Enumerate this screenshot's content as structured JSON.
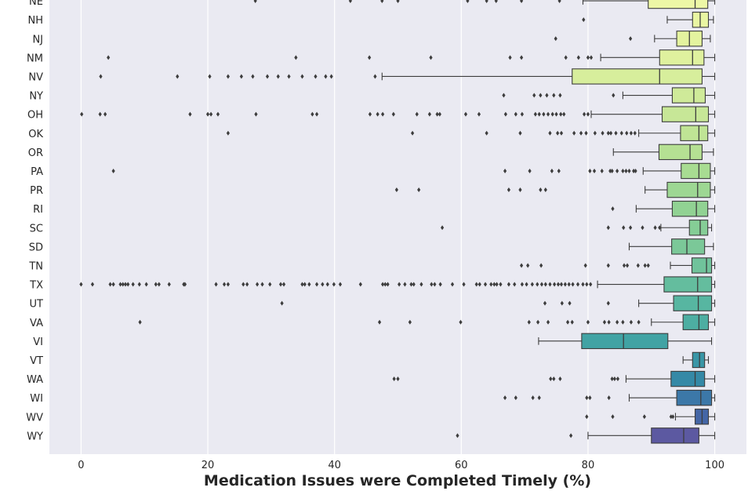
{
  "chart_data": {
    "type": "box",
    "orientation": "horizontal",
    "xlabel": "Medication Issues were Completed Timely (%)",
    "xlim": [
      -5,
      105
    ],
    "xticks": [
      0,
      20,
      40,
      60,
      80,
      100
    ],
    "grid": true,
    "palette": "yellow-green-blue (top to bottom)",
    "categories": [
      {
        "label": "NE",
        "color": "#edf7a6",
        "whisker_low": 79.2,
        "q1": 89.5,
        "median": 96.9,
        "q3": 98.9,
        "whisker_high": 100,
        "outliers": [
          27.5,
          42.5,
          47.5,
          50,
          61,
          64,
          65.5,
          69.5,
          75.5
        ]
      },
      {
        "label": "NH",
        "color": "#e9f5a2",
        "whisker_low": 92.5,
        "q1": 96.5,
        "median": 97.7,
        "q3": 99,
        "whisker_high": 99.8,
        "outliers": [
          79.3
        ]
      },
      {
        "label": "NJ",
        "color": "#e4f39f",
        "whisker_low": 90.5,
        "q1": 94,
        "median": 96,
        "q3": 98,
        "whisker_high": 99.3,
        "outliers": [
          74.9,
          86.7
        ]
      },
      {
        "label": "NM",
        "color": "#dff19e",
        "whisker_low": 82,
        "q1": 91.3,
        "median": 96.5,
        "q3": 98.3,
        "whisker_high": 100,
        "outliers": [
          4.3,
          33.9,
          45.5,
          55.2,
          67.7,
          69.5,
          76.5,
          78.5,
          80,
          80.5
        ]
      },
      {
        "label": "NV",
        "color": "#d7ee9c",
        "whisker_low": 47.5,
        "q1": 77.5,
        "median": 91.3,
        "q3": 98,
        "whisker_high": 100,
        "outliers": [
          3.1,
          15.2,
          20.3,
          23.2,
          25.3,
          27.1,
          29.4,
          31.1,
          32.8,
          34.9,
          37,
          38.6,
          39.5,
          46.4
        ]
      },
      {
        "label": "NY",
        "color": "#cfea99",
        "whisker_low": 85.5,
        "q1": 93.3,
        "median": 96.7,
        "q3": 98.5,
        "whisker_high": 100,
        "outliers": [
          66.7,
          71.5,
          72.5,
          73.5,
          74.6,
          75.6,
          84
        ]
      },
      {
        "label": "OH",
        "color": "#c7e797",
        "whisker_low": 80.5,
        "q1": 91.7,
        "median": 97,
        "q3": 99,
        "whisker_high": 100,
        "outliers": [
          0.1,
          3,
          3.8,
          17.2,
          20,
          20.5,
          21.6,
          27.6,
          36.5,
          37.2,
          45.6,
          46.8,
          47.6,
          49.3,
          53,
          55,
          56.2,
          56.6,
          60.7,
          62.8,
          67,
          68.6,
          69.6,
          71.7,
          72.3,
          73,
          73.7,
          74.4,
          75,
          75.7,
          76.2,
          79.4,
          80
        ]
      },
      {
        "label": "OK",
        "color": "#bfe495",
        "whisker_low": 88,
        "q1": 94.6,
        "median": 97.5,
        "q3": 98.9,
        "whisker_high": 100,
        "outliers": [
          23.2,
          52.3,
          64,
          69.3,
          74,
          75.2,
          75.8,
          77.8,
          78.9,
          79.7,
          81.1,
          82.3,
          83.2,
          83.6,
          84.4,
          85.3,
          86.1,
          86.8,
          87.4
        ]
      },
      {
        "label": "OR",
        "color": "#b5e093",
        "whisker_low": 84,
        "q1": 91.2,
        "median": 96.1,
        "q3": 98,
        "whisker_high": 99.8,
        "outliers": []
      },
      {
        "label": "PA",
        "color": "#a8dc92",
        "whisker_low": 88.7,
        "q1": 94.7,
        "median": 97.5,
        "q3": 99.3,
        "whisker_high": 100,
        "outliers": [
          5.1,
          66.9,
          70.8,
          74.3,
          75.4,
          80.3,
          81,
          82.2,
          83.5,
          83.8,
          84.6,
          85.5,
          86,
          86.5,
          87.2,
          87.5
        ]
      },
      {
        "label": "PR",
        "color": "#9dd793",
        "whisker_low": 89,
        "q1": 92.5,
        "median": 97.3,
        "q3": 99.3,
        "whisker_high": 100,
        "outliers": [
          49.8,
          53.3,
          67.5,
          69.3,
          72.5,
          73.3
        ]
      },
      {
        "label": "RI",
        "color": "#91d293",
        "whisker_low": 87.6,
        "q1": 93.3,
        "median": 97.1,
        "q3": 98.9,
        "whisker_high": 100,
        "outliers": [
          83.9
        ]
      },
      {
        "label": "SC",
        "color": "#85cd96",
        "whisker_low": 91.5,
        "q1": 96,
        "median": 97.7,
        "q3": 98.9,
        "whisker_high": 99.5,
        "outliers": [
          57,
          83.2,
          85.6,
          86.7,
          88.6,
          90.6,
          91.3
        ]
      },
      {
        "label": "SD",
        "color": "#7bc898",
        "whisker_low": 86.5,
        "q1": 93.2,
        "median": 95.6,
        "q3": 98.4,
        "whisker_high": 99.8,
        "outliers": []
      },
      {
        "label": "TN",
        "color": "#70c39b",
        "whisker_low": 93,
        "q1": 96.4,
        "median": 98.7,
        "q3": 99.5,
        "whisker_high": 100,
        "outliers": [
          69.5,
          70.5,
          72.6,
          79.6,
          83.2,
          85.7,
          86.2,
          87.9,
          89,
          89.5
        ]
      },
      {
        "label": "TX",
        "color": "#64bd9e",
        "whisker_low": 81.5,
        "q1": 92,
        "median": 97.3,
        "q3": 99.5,
        "whisker_high": 100,
        "outliers": [
          0,
          1.8,
          4.6,
          5.1,
          6.2,
          6.6,
          7,
          7.4,
          8.2,
          9.2,
          10.3,
          11.8,
          12.3,
          13.9,
          16.2,
          16.4,
          21.3,
          22.6,
          23.2,
          25.6,
          26.2,
          27.8,
          28.6,
          29.8,
          31.5,
          32,
          34.9,
          35.3,
          36,
          37.2,
          38.1,
          38.9,
          39.9,
          40.9,
          44.1,
          47.6,
          48,
          48.4,
          50.2,
          51.1,
          52.1,
          52.5,
          53.7,
          55.3,
          55.8,
          56.7,
          58.6,
          60.4,
          62.4,
          62.9,
          63.8,
          64.7,
          65.2,
          65.6,
          66.2,
          67.5,
          68.4,
          69.6,
          70.3,
          71.2,
          72,
          72.7,
          73.3,
          74,
          74.7,
          75.3,
          75.8,
          76.4,
          77,
          77.6,
          78.4,
          79.2,
          79.8,
          80.4
        ]
      },
      {
        "label": "UT",
        "color": "#57b6a1",
        "whisker_low": 88,
        "q1": 93.5,
        "median": 97.4,
        "q3": 99.5,
        "whisker_high": 100,
        "outliers": [
          31.7,
          73.2,
          75.9,
          77.1,
          83.2
        ]
      },
      {
        "label": "VA",
        "color": "#4daea2",
        "whisker_low": 90,
        "q1": 95,
        "median": 97.5,
        "q3": 99,
        "whisker_high": 100,
        "outliers": [
          9.3,
          47.1,
          51.9,
          59.9,
          70.7,
          72.1,
          73.7,
          76.8,
          77.5,
          80,
          82.6,
          83.3,
          84.6,
          85.5,
          86.8,
          88
        ]
      },
      {
        "label": "VI",
        "color": "#41a3a4",
        "whisker_low": 72.2,
        "q1": 79,
        "median": 85.6,
        "q3": 92.6,
        "whisker_high": 99.5,
        "outliers": []
      },
      {
        "label": "VT",
        "color": "#3996a6",
        "whisker_low": 95,
        "q1": 96.5,
        "median": 97.6,
        "q3": 98.4,
        "whisker_high": 99,
        "outliers": []
      },
      {
        "label": "WA",
        "color": "#3589a6",
        "whisker_low": 86,
        "q1": 93.1,
        "median": 96.9,
        "q3": 98.4,
        "whisker_high": 100,
        "outliers": [
          49.4,
          50,
          74.1,
          74.6,
          75.6,
          83.8,
          84.2,
          84.7
        ]
      },
      {
        "label": "WI",
        "color": "#3c78a8",
        "whisker_low": 86.5,
        "q1": 94,
        "median": 97.8,
        "q3": 99.5,
        "whisker_high": 100,
        "outliers": [
          66.9,
          68.6,
          71.3,
          72.3,
          79.8,
          80.3,
          83.3
        ]
      },
      {
        "label": "WV",
        "color": "#4466a6",
        "whisker_low": 93.8,
        "q1": 96.9,
        "median": 98,
        "q3": 99,
        "whisker_high": 100,
        "outliers": [
          79.8,
          83.9,
          88.9,
          93.1,
          93.4
        ]
      },
      {
        "label": "WY",
        "color": "#5c59a1",
        "whisker_low": 80,
        "q1": 90,
        "median": 95.1,
        "q3": 97.5,
        "whisker_high": 100,
        "outliers": [
          59.4,
          77.3
        ]
      }
    ]
  }
}
